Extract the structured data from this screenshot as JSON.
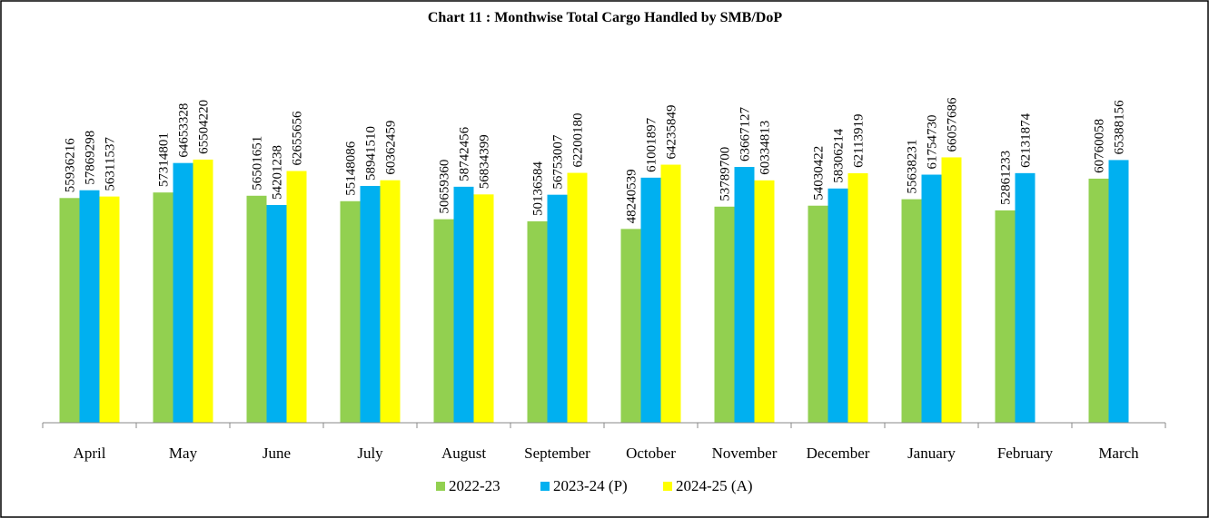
{
  "chart_data": {
    "type": "bar",
    "title": "Chart 11 : Monthwise Total Cargo Handled by SMB/DoP",
    "categories": [
      "April",
      "May",
      "June",
      "July",
      "August",
      "September",
      "October",
      "November",
      "December",
      "January",
      "February",
      "March"
    ],
    "series": [
      {
        "name": "2022-23",
        "color": "#92d050",
        "values": [
          55936216,
          57314801,
          56501651,
          55148086,
          50659360,
          50136584,
          48240539,
          53789700,
          54030422,
          55638231,
          52861233,
          60760058
        ]
      },
      {
        "name": "2023-24 (P)",
        "color": "#00b0f0",
        "values": [
          57869298,
          64653328,
          54201238,
          58941510,
          58742456,
          56753007,
          61001897,
          63667127,
          58306214,
          61754730,
          62131874,
          65388156
        ]
      },
      {
        "name": "2024-25 (A)",
        "color": "#ffff00",
        "values": [
          56311537,
          65504220,
          62655656,
          60362459,
          56834399,
          62200180,
          64235849,
          60334813,
          62113919,
          66057686,
          null,
          null
        ]
      }
    ],
    "ylim": [
      0,
      70000000
    ]
  }
}
